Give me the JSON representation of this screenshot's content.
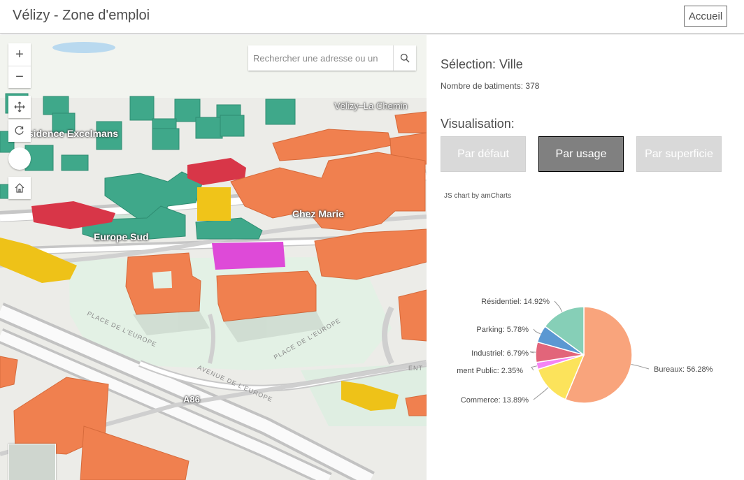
{
  "header": {
    "title": "Vélizy - Zone d'emploi",
    "home_label": "Accueil"
  },
  "map": {
    "search_placeholder": "Rechercher une adresse ou un",
    "labels": {
      "velizy_chemin": "Vélizy–La Chemin",
      "residence": "Résidence Excelmans",
      "chez_marie": "Chez Marie",
      "europe_sud": "Europe Sud",
      "a86": "A86"
    },
    "streets": {
      "place1": "PLACE DE L'EUROPE",
      "place2": "PLACE DE L'EUROPE",
      "avenue": "AVENUE DE L'EUROPE",
      "cut": "ENT"
    }
  },
  "panel": {
    "selection_title": "Sélection: Ville",
    "buildings_count": "Nombre de batiments: 378",
    "visualisation_title": "Visualisation:",
    "buttons": {
      "default": "Par défaut",
      "usage": "Par usage",
      "area": "Par superficie"
    },
    "active_button": "usage",
    "chart_credit": "JS chart by amCharts"
  },
  "chart_data": {
    "type": "pie",
    "slices": [
      {
        "category": "Bureaux",
        "value": 56.28,
        "label": "Bureaux: 56.28%",
        "color": "#f9a47c"
      },
      {
        "category": "Commerce",
        "value": 13.89,
        "label": "Commerce: 13.89%",
        "color": "#fce35b"
      },
      {
        "category": "Equipement Public",
        "value": 2.35,
        "label": "ment Public: 2.35%",
        "color": "#f484f4"
      },
      {
        "category": "Industriel",
        "value": 6.79,
        "label": "Industriel: 6.79%",
        "color": "#e2657a"
      },
      {
        "category": "Parking",
        "value": 5.78,
        "label": "Parking: 5.78%",
        "color": "#5b98d2"
      },
      {
        "category": "Résidentiel",
        "value": 14.92,
        "label": "Résidentiel: 14.92%",
        "color": "#86cfb7"
      }
    ]
  }
}
